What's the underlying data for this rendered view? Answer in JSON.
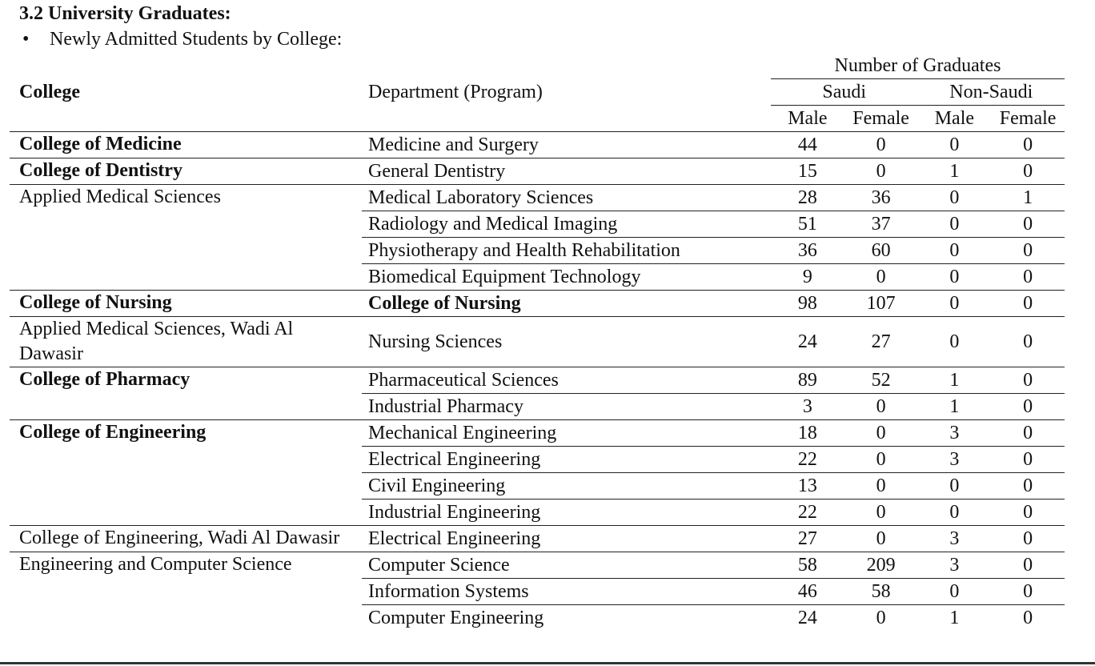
{
  "heading": "3.2 University Graduates:",
  "bullet": "Newly Admitted Students by College:",
  "table": {
    "super_header": "Number of Graduates",
    "columns": [
      "College",
      "Department (Program)"
    ],
    "nationality": [
      "Saudi",
      "Non-Saudi"
    ],
    "genders": [
      "Male",
      "Female",
      "Male",
      "Female"
    ],
    "sections": [
      {
        "college": "College of Medicine",
        "college_bold": true,
        "rows": [
          {
            "department": "Medicine and Surgery",
            "values": [
              44,
              0,
              0,
              0
            ]
          }
        ]
      },
      {
        "college": "College of Dentistry",
        "college_bold": true,
        "rows": [
          {
            "department": "General Dentistry",
            "values": [
              15,
              0,
              1,
              0
            ]
          }
        ]
      },
      {
        "college": "Applied Medical Sciences",
        "college_bold": false,
        "rows": [
          {
            "department": "Medical Laboratory Sciences",
            "values": [
              28,
              36,
              0,
              1
            ]
          },
          {
            "department": "Radiology and Medical Imaging",
            "values": [
              51,
              37,
              0,
              0
            ]
          },
          {
            "department": "Physiotherapy and Health Rehabilitation",
            "values": [
              36,
              60,
              0,
              0
            ]
          },
          {
            "department": "Biomedical Equipment Technology",
            "values": [
              9,
              0,
              0,
              0
            ]
          }
        ]
      },
      {
        "college": "College of Nursing",
        "college_bold": true,
        "rows": [
          {
            "department": "College of Nursing",
            "department_bold": true,
            "values": [
              98,
              107,
              0,
              0
            ]
          }
        ]
      },
      {
        "college": "Applied Medical Sciences, Wadi Al Dawasir",
        "college_bold": false,
        "rows": [
          {
            "department": "Nursing Sciences",
            "values": [
              24,
              27,
              0,
              0
            ]
          }
        ]
      },
      {
        "college": "College of Pharmacy",
        "college_bold": true,
        "rows": [
          {
            "department": "Pharmaceutical Sciences",
            "values": [
              89,
              52,
              1,
              0
            ]
          },
          {
            "department": "Industrial Pharmacy",
            "values": [
              3,
              0,
              1,
              0
            ]
          }
        ]
      },
      {
        "college": "College of Engineering",
        "college_bold": true,
        "rows": [
          {
            "department": "Mechanical Engineering",
            "values": [
              18,
              0,
              3,
              0
            ]
          },
          {
            "department": "Electrical Engineering",
            "values": [
              22,
              0,
              3,
              0
            ]
          },
          {
            "department": "Civil Engineering",
            "values": [
              13,
              0,
              0,
              0
            ]
          },
          {
            "department": "Industrial Engineering",
            "values": [
              22,
              0,
              0,
              0
            ]
          }
        ]
      },
      {
        "college": "College of Engineering, Wadi Al Dawasir",
        "college_bold": false,
        "rows": [
          {
            "department": "Electrical Engineering",
            "values": [
              27,
              0,
              3,
              0
            ]
          }
        ]
      },
      {
        "college": "Engineering and Computer Science",
        "college_bold": false,
        "rows": [
          {
            "department": "Computer Science",
            "values": [
              58,
              209,
              3,
              0
            ]
          },
          {
            "department": "Information Systems",
            "values": [
              46,
              58,
              0,
              0
            ]
          },
          {
            "department": "Computer Engineering",
            "values": [
              24,
              0,
              1,
              0
            ]
          }
        ]
      }
    ]
  }
}
